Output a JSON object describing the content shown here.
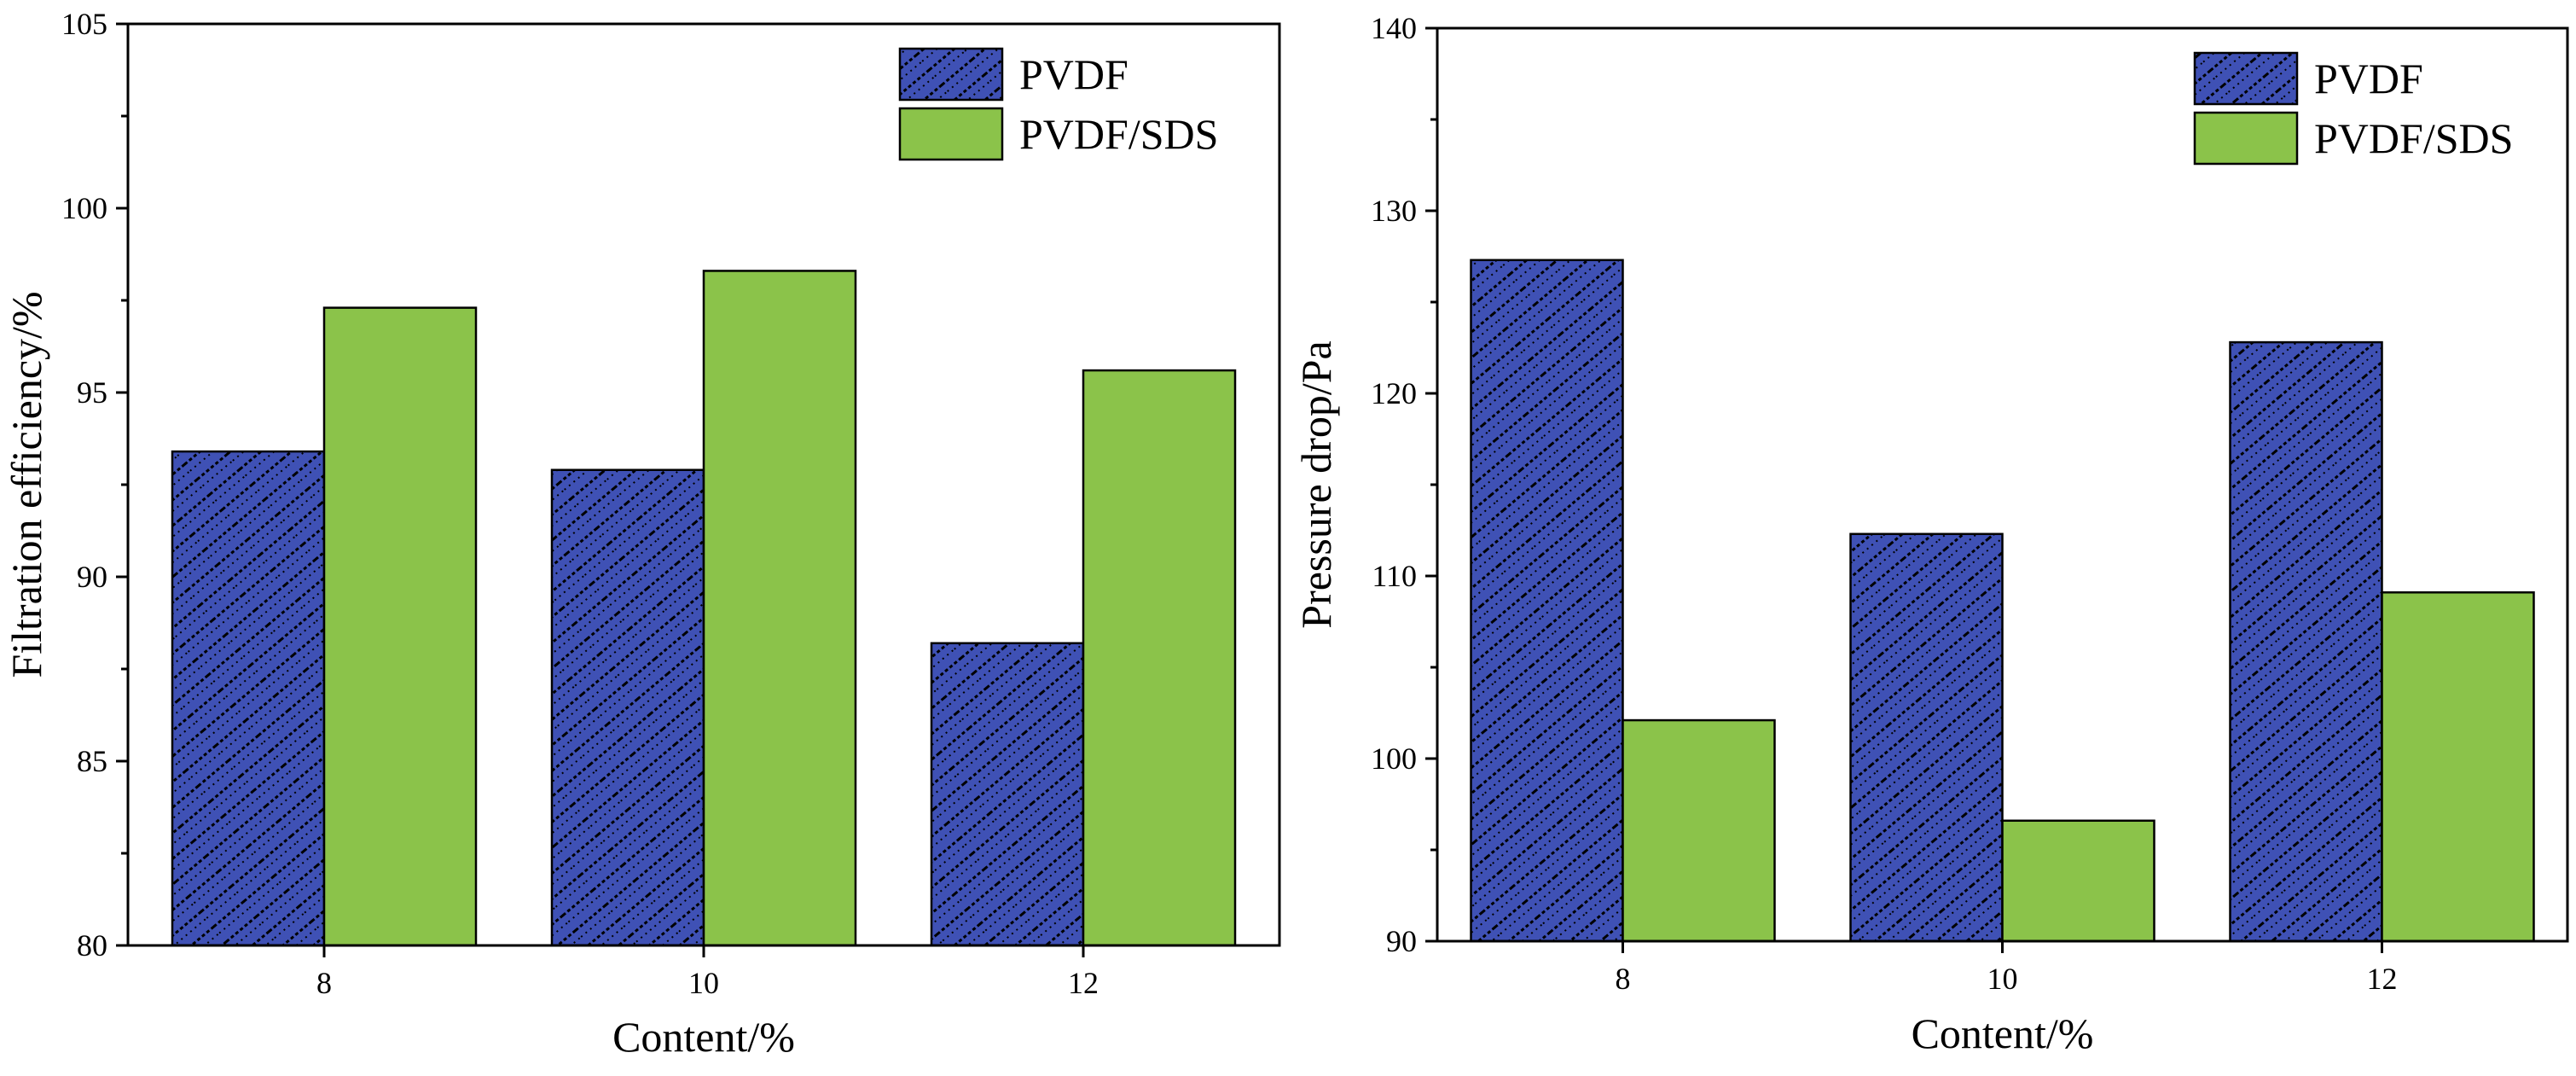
{
  "colors": {
    "pvdf": "#3f51b5",
    "pvdf_pattern": "#000000",
    "pvdf_sds": "#8bc34a"
  },
  "chart_data": [
    {
      "type": "bar",
      "categories": [
        "8",
        "10",
        "12"
      ],
      "series": [
        {
          "name": "PVDF",
          "values": [
            93.4,
            92.9,
            88.2
          ]
        },
        {
          "name": "PVDF/SDS",
          "values": [
            97.3,
            98.3,
            95.6
          ]
        }
      ],
      "xlabel": "Content/%",
      "ylabel": "Filtration efficiency/%",
      "ylim": [
        80,
        105
      ],
      "yticks": [
        "80",
        "85",
        "90",
        "95",
        "100",
        "105"
      ],
      "legend": "top-right",
      "grid": false
    },
    {
      "type": "bar",
      "categories": [
        "8",
        "10",
        "12"
      ],
      "series": [
        {
          "name": "PVDF",
          "values": [
            127.3,
            112.3,
            122.8
          ]
        },
        {
          "name": "PVDF/SDS",
          "values": [
            102.1,
            96.6,
            109.1
          ]
        }
      ],
      "xlabel": "Content/%",
      "ylabel": "Pressure drop/Pa",
      "ylim": [
        90,
        140
      ],
      "yticks": [
        "90",
        "100",
        "110",
        "120",
        "130",
        "140"
      ],
      "legend": "top-right",
      "grid": false
    }
  ]
}
